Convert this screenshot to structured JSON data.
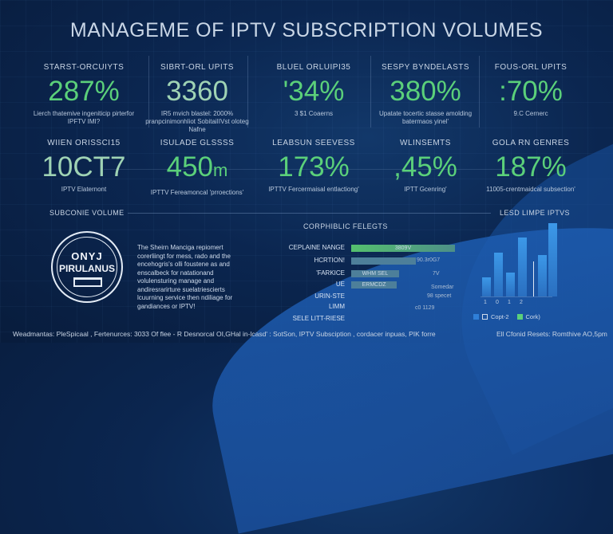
{
  "title": "MANAGEME OF IPTV SUBSCRIPTION VOLUMES",
  "row1": [
    {
      "label": "STARST-ORCUIYTS",
      "value": "287%",
      "desc": "Lierch thatemive ingeniticip pirterfor IPFTV IMI?"
    },
    {
      "label": "SIBRT-ORL UPITS",
      "value": "3360",
      "desc": "IR5 mvich blastel: 2000% pranpcinimonhliot SobitaiIIVst oloteg Nafne"
    },
    {
      "label": "BLUEL ORLUIPI35",
      "value": "'34%",
      "desc": "3 $1 Coaerns"
    },
    {
      "label": "SESPY BYNDELASTS",
      "value": "380%",
      "desc": "Upatate tocertic stasse amolding batermaos yinel'"
    },
    {
      "label": "FOUS-ORL UPITS",
      "value": ":70%",
      "desc": "9.C Cernerc"
    }
  ],
  "row2": [
    {
      "label": "WIIEN ORISSCI15",
      "value": "10CT7",
      "desc": "IPTV Elaternont"
    },
    {
      "label": "ISULADE GLSSSS",
      "value": "450",
      "unit": "m",
      "desc": "IPTTV Fereamoncal 'prroections'"
    },
    {
      "label": "LEABSUN SEEVESS",
      "value": "173%",
      "desc": "IPTTV Fercermaisal entlactiong'"
    },
    {
      "label": "WLINSEMTS",
      "value": ",45%",
      "desc": "IPTT Gcenring'"
    },
    {
      "label": "GOLA RN GENRES",
      "value": "187%",
      "desc": "11005-crentmaidcal subsection'"
    }
  ],
  "section_left": "SUBCONIE VOLUME",
  "section_right": "LESD LIMPE IPTVS",
  "logo": {
    "line1": "ONYJ",
    "line2": "PIRULANUS"
  },
  "paragraph": "The Sheirn Manciga repiomert corerliingt for mess, rado and the encehogris's olli foustene as and enscalbeck for natationand volulensturing manage and andiresrarirture suelatriescierts lcuurning service then ndiliage for gandiances or IPTV!",
  "chart_data": [
    {
      "type": "bar",
      "orientation": "horizontal",
      "title": "CORPHIBLIC FELEGTS",
      "categories": [
        "CEPLAINE NANGE",
        "HCRTION!",
        "'FARKICE",
        "UE",
        "URIN-STE",
        "LIMM",
        "SELE LITT-RIESE"
      ],
      "values": [
        100,
        62,
        46,
        44,
        null,
        null,
        null
      ],
      "bar_labels": [
        "3809V",
        "",
        "WHM SEL",
        "ERMCDZ",
        "",
        "",
        ""
      ],
      "annotations": [
        "90.3r0G7",
        "7V",
        "Somedar",
        "98 specet",
        "c0 1129"
      ],
      "colors": [
        "#54c06e",
        "#4d7f9a",
        "#4d7f9a",
        "#4d7f9a"
      ]
    },
    {
      "type": "bar",
      "orientation": "vertical",
      "title": "LESD LIMPE IPTVS",
      "values": [
        26,
        60,
        33,
        80,
        57,
        100
      ],
      "tick_labels": [
        "1",
        "0",
        "1",
        "2"
      ],
      "legend": [
        {
          "name": "Copt-2",
          "color": "#2f7fd8"
        },
        {
          "name": "Cork)",
          "color": "#5bd07a"
        }
      ],
      "color": "#3c98e8"
    }
  ],
  "footer_left": "Weadmantas:   PleSpicaal , Fertenurces: 3033   Of flee - R Desnorcal OI,GHal   in-lcasd' : SotSon, IPTV Subsciption , cordacer inpuas, PIK forre",
  "footer_right": "Ell Cfonid Resets: Romthive AO,5pm"
}
